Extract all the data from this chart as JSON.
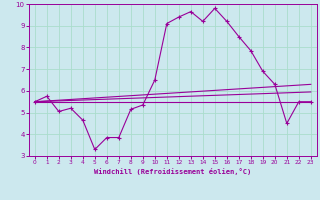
{
  "xlabel": "Windchill (Refroidissement éolien,°C)",
  "xlim": [
    -0.5,
    23.5
  ],
  "ylim": [
    3,
    10
  ],
  "xticks": [
    0,
    1,
    2,
    3,
    4,
    5,
    6,
    7,
    8,
    9,
    10,
    11,
    12,
    13,
    14,
    15,
    16,
    17,
    18,
    19,
    20,
    21,
    22,
    23
  ],
  "yticks": [
    3,
    4,
    5,
    6,
    7,
    8,
    9,
    10
  ],
  "bg_color": "#cce8ee",
  "line_color": "#990099",
  "grid_color": "#aaddcc",
  "line1_x": [
    0,
    1,
    2,
    3,
    4,
    5,
    6,
    7,
    8,
    9,
    10,
    11,
    12,
    13,
    14,
    15,
    16,
    17,
    18,
    19,
    20,
    21,
    22,
    23
  ],
  "line1_y": [
    5.5,
    5.75,
    5.05,
    5.2,
    4.65,
    3.3,
    3.85,
    3.85,
    5.15,
    5.35,
    6.5,
    9.1,
    9.4,
    9.65,
    9.2,
    9.8,
    9.2,
    8.5,
    7.85,
    6.9,
    6.3,
    4.5,
    5.5,
    5.5
  ],
  "line2_x": [
    0,
    23
  ],
  "line2_y": [
    5.5,
    6.3
  ],
  "line3_x": [
    0,
    23
  ],
  "line3_y": [
    5.5,
    5.95
  ],
  "line4_x": [
    0,
    23
  ],
  "line4_y": [
    5.5,
    5.5
  ]
}
